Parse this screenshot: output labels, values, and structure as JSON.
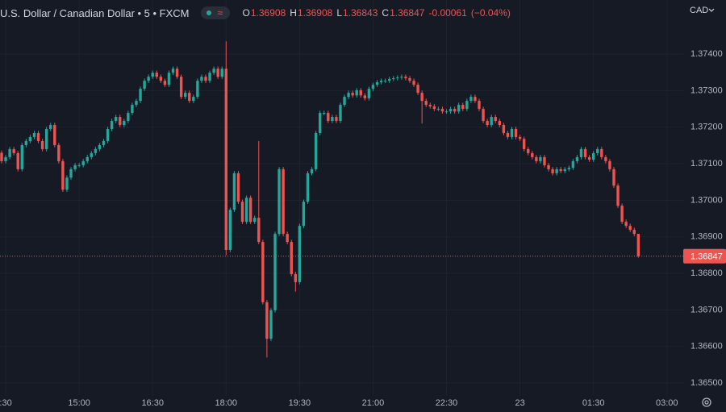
{
  "chart_data": {
    "type": "candlestick",
    "title": "U.S. Dollar / Canadian Dollar • 5 • FXCM",
    "ohlc_letters": [
      "O",
      "H",
      "L",
      "C"
    ],
    "change": -0.00061,
    "change_pct": "(−0.04%)",
    "currency": "CAD",
    "up_color": "#26a69a",
    "down_color": "#ef5350",
    "grid": true,
    "x": [
      "13:25",
      "13:30",
      "13:35",
      "13:40",
      "13:45",
      "13:50",
      "13:55",
      "14:00",
      "14:05",
      "14:10",
      "14:15",
      "14:20",
      "14:25",
      "14:30",
      "14:35",
      "14:40",
      "14:45",
      "14:50",
      "14:55",
      "15:00",
      "15:05",
      "15:10",
      "15:15",
      "15:20",
      "15:25",
      "15:30",
      "15:35",
      "15:40",
      "15:45",
      "15:50",
      "15:55",
      "16:00",
      "16:05",
      "16:10",
      "16:15",
      "16:20",
      "16:25",
      "16:30",
      "16:35",
      "16:40",
      "16:45",
      "16:50",
      "16:55",
      "17:00",
      "17:05",
      "17:10",
      "17:15",
      "17:20",
      "17:25",
      "17:30",
      "17:35",
      "17:40",
      "17:45",
      "17:50",
      "17:55",
      "18:00",
      "18:05",
      "18:10",
      "18:15",
      "18:20",
      "18:25",
      "18:30",
      "18:35",
      "18:40",
      "18:45",
      "18:50",
      "18:55",
      "19:00",
      "19:05",
      "19:10",
      "19:15",
      "19:20",
      "19:25",
      "19:30",
      "19:35",
      "19:40",
      "19:45",
      "19:50",
      "19:55",
      "20:00",
      "20:05",
      "20:10",
      "20:15",
      "20:20",
      "20:25",
      "20:30",
      "20:35",
      "20:40",
      "20:45",
      "20:50",
      "20:55",
      "21:00",
      "21:05",
      "21:10",
      "21:15",
      "21:20",
      "21:25",
      "21:30",
      "21:35",
      "21:40",
      "21:45",
      "21:50",
      "21:55",
      "22:00",
      "22:05",
      "22:10",
      "22:15",
      "22:20",
      "22:25",
      "22:30",
      "22:35",
      "22:40",
      "22:45",
      "22:50",
      "22:55",
      "23:00",
      "23:05",
      "23:10",
      "23:15",
      "23:20",
      "23:25",
      "23:30",
      "23:35",
      "23:40",
      "23:45",
      "23:50",
      "23:55",
      "00:00",
      "00:05",
      "00:10",
      "00:15",
      "00:20",
      "00:25",
      "00:30",
      "00:35",
      "00:40",
      "00:45",
      "00:50",
      "00:55",
      "01:00",
      "01:05",
      "01:10",
      "01:15",
      "01:20",
      "01:25",
      "01:30",
      "01:35",
      "01:40",
      "01:45",
      "01:50",
      "01:55",
      "02:00",
      "02:05",
      "02:10",
      "02:15",
      "02:20",
      "02:25"
    ],
    "open": [
      1.3713,
      1.37107,
      1.37118,
      1.3714,
      1.37129,
      1.37085,
      1.37151,
      1.37162,
      1.37173,
      1.37184,
      1.37162,
      1.3714,
      1.37195,
      1.37206,
      1.37151,
      1.37107,
      1.37029,
      1.37062,
      1.37085,
      1.37096,
      1.37096,
      1.37107,
      1.37118,
      1.37129,
      1.3714,
      1.37151,
      1.37162,
      1.37195,
      1.37217,
      1.37228,
      1.37206,
      1.37217,
      1.37239,
      1.37261,
      1.37272,
      1.37305,
      1.37327,
      1.37338,
      1.37349,
      1.37338,
      1.37327,
      1.37316,
      1.37349,
      1.3736,
      1.37338,
      1.37283,
      1.37294,
      1.37272,
      1.37283,
      1.37327,
      1.37338,
      1.37327,
      1.37349,
      1.3736,
      1.37338,
      1.3736,
      1.36864,
      1.36974,
      1.37074,
      1.36996,
      1.36941,
      1.37007,
      1.36941,
      1.36952,
      1.36886,
      1.36721,
      1.36621,
      1.36699,
      1.36908,
      1.37085,
      1.36908,
      1.36886,
      1.36798,
      1.36776,
      1.3693,
      1.36996,
      1.37074,
      1.37085,
      1.37184,
      1.37239,
      1.37239,
      1.37217,
      1.37228,
      1.37217,
      1.37261,
      1.37283,
      1.37294,
      1.37287,
      1.37301,
      1.37287,
      1.37279,
      1.37305,
      1.37316,
      1.37323,
      1.37327,
      1.37327,
      1.37332,
      1.37334,
      1.37336,
      1.37338,
      1.37334,
      1.37327,
      1.37316,
      1.37294,
      1.37272,
      1.37261,
      1.37257,
      1.3725,
      1.3725,
      1.37243,
      1.37243,
      1.3725,
      1.37243,
      1.37261,
      1.3725,
      1.37272,
      1.37283,
      1.37272,
      1.3725,
      1.37217,
      1.37206,
      1.37228,
      1.37217,
      1.37206,
      1.37184,
      1.37173,
      1.37195,
      1.37173,
      1.37168,
      1.3714,
      1.37129,
      1.37118,
      1.37107,
      1.37118,
      1.37096,
      1.37085,
      1.37074,
      1.37085,
      1.3708,
      1.37085,
      1.37089,
      1.37107,
      1.37118,
      1.3714,
      1.37118,
      1.37111,
      1.37129,
      1.3714,
      1.37118,
      1.37107,
      1.37085,
      1.3704,
      1.36985,
      1.36941,
      1.3693,
      1.36919,
      1.36908
    ],
    "high": [
      1.37136,
      1.37124,
      1.37146,
      1.37146,
      1.37135,
      1.37157,
      1.37168,
      1.37179,
      1.3719,
      1.3719,
      1.37168,
      1.37201,
      1.37212,
      1.37212,
      1.37157,
      1.37113,
      1.37068,
      1.37091,
      1.37102,
      1.37102,
      1.37113,
      1.37124,
      1.37135,
      1.37146,
      1.37157,
      1.37168,
      1.37201,
      1.37223,
      1.37234,
      1.37234,
      1.37223,
      1.37245,
      1.37267,
      1.37278,
      1.37311,
      1.37333,
      1.37344,
      1.37355,
      1.37355,
      1.37344,
      1.37333,
      1.37355,
      1.37366,
      1.37366,
      1.37344,
      1.373,
      1.373,
      1.37289,
      1.37333,
      1.37344,
      1.37344,
      1.37355,
      1.37366,
      1.37366,
      1.37366,
      1.37435,
      1.3698,
      1.3708,
      1.3708,
      1.37002,
      1.37013,
      1.37013,
      1.36958,
      1.37162,
      1.36892,
      1.36727,
      1.36705,
      1.36914,
      1.37091,
      1.37091,
      1.36914,
      1.36892,
      1.36804,
      1.36936,
      1.37002,
      1.3708,
      1.37091,
      1.3719,
      1.37245,
      1.37245,
      1.37245,
      1.37234,
      1.37234,
      1.37267,
      1.37289,
      1.373,
      1.373,
      1.37307,
      1.37307,
      1.37293,
      1.37311,
      1.37322,
      1.37329,
      1.37333,
      1.37333,
      1.37338,
      1.3734,
      1.37342,
      1.37344,
      1.37344,
      1.3734,
      1.37333,
      1.37322,
      1.373,
      1.37278,
      1.37267,
      1.37263,
      1.37256,
      1.37256,
      1.37249,
      1.37256,
      1.37256,
      1.37267,
      1.37267,
      1.37278,
      1.37289,
      1.37289,
      1.37278,
      1.37256,
      1.37223,
      1.37234,
      1.37234,
      1.37223,
      1.37212,
      1.3719,
      1.37201,
      1.37201,
      1.37179,
      1.37174,
      1.37146,
      1.37135,
      1.37124,
      1.37124,
      1.37124,
      1.37102,
      1.37091,
      1.37091,
      1.37091,
      1.37091,
      1.37095,
      1.37113,
      1.37124,
      1.37146,
      1.37146,
      1.37124,
      1.37135,
      1.37146,
      1.37146,
      1.37124,
      1.37113,
      1.37091,
      1.37046,
      1.36991,
      1.36947,
      1.36936,
      1.36925,
      1.36908
    ],
    "low": [
      1.37101,
      1.37101,
      1.37112,
      1.37123,
      1.37079,
      1.37079,
      1.37145,
      1.37156,
      1.37167,
      1.37156,
      1.37134,
      1.37134,
      1.37189,
      1.37145,
      1.37101,
      1.37023,
      1.37023,
      1.37056,
      1.37079,
      1.3709,
      1.3709,
      1.37101,
      1.37112,
      1.37123,
      1.37134,
      1.37145,
      1.37156,
      1.37189,
      1.37211,
      1.372,
      1.372,
      1.37211,
      1.37233,
      1.37255,
      1.37266,
      1.37299,
      1.37321,
      1.37332,
      1.37332,
      1.37321,
      1.3731,
      1.3731,
      1.37343,
      1.37332,
      1.37277,
      1.37277,
      1.37266,
      1.37266,
      1.37277,
      1.37321,
      1.37321,
      1.37321,
      1.37343,
      1.37332,
      1.37332,
      1.3685,
      1.36858,
      1.36968,
      1.3699,
      1.36935,
      1.36935,
      1.36935,
      1.36935,
      1.3688,
      1.36715,
      1.3657,
      1.36615,
      1.36693,
      1.36902,
      1.36902,
      1.3688,
      1.36792,
      1.3675,
      1.3677,
      1.36924,
      1.3699,
      1.37068,
      1.37079,
      1.37178,
      1.37233,
      1.37211,
      1.37211,
      1.37211,
      1.37211,
      1.37255,
      1.37277,
      1.37281,
      1.37281,
      1.37281,
      1.37273,
      1.37273,
      1.37299,
      1.3731,
      1.37317,
      1.37321,
      1.37321,
      1.37326,
      1.37328,
      1.3733,
      1.37328,
      1.37321,
      1.3731,
      1.37288,
      1.3721,
      1.37255,
      1.37251,
      1.37244,
      1.37244,
      1.37237,
      1.37237,
      1.37237,
      1.37237,
      1.37237,
      1.37244,
      1.37244,
      1.37266,
      1.37266,
      1.37244,
      1.37211,
      1.372,
      1.372,
      1.37211,
      1.372,
      1.37178,
      1.37167,
      1.37167,
      1.37167,
      1.37162,
      1.37134,
      1.37123,
      1.37112,
      1.37101,
      1.37101,
      1.3709,
      1.37079,
      1.37068,
      1.37068,
      1.37074,
      1.37074,
      1.37079,
      1.37083,
      1.37101,
      1.37112,
      1.37112,
      1.37105,
      1.37105,
      1.37123,
      1.37112,
      1.37101,
      1.37079,
      1.37034,
      1.36979,
      1.36935,
      1.36924,
      1.36913,
      1.36902,
      1.36843
    ],
    "close": [
      1.37107,
      1.37118,
      1.3714,
      1.37129,
      1.37085,
      1.37151,
      1.37162,
      1.37173,
      1.37184,
      1.37162,
      1.3714,
      1.37195,
      1.37206,
      1.37151,
      1.37107,
      1.37029,
      1.37062,
      1.37085,
      1.37096,
      1.37096,
      1.37107,
      1.37118,
      1.37129,
      1.3714,
      1.37151,
      1.37162,
      1.37195,
      1.37217,
      1.37228,
      1.37206,
      1.37217,
      1.37239,
      1.37261,
      1.37272,
      1.37305,
      1.37327,
      1.37338,
      1.37349,
      1.37338,
      1.37327,
      1.37316,
      1.37349,
      1.3736,
      1.37338,
      1.37283,
      1.37294,
      1.37272,
      1.37283,
      1.37327,
      1.37338,
      1.37327,
      1.37349,
      1.3736,
      1.37338,
      1.3736,
      1.36864,
      1.36974,
      1.37074,
      1.36996,
      1.36941,
      1.37007,
      1.36941,
      1.36952,
      1.36886,
      1.36721,
      1.36621,
      1.36699,
      1.36908,
      1.37085,
      1.36908,
      1.36886,
      1.36798,
      1.36776,
      1.3693,
      1.36996,
      1.37074,
      1.37085,
      1.37184,
      1.37239,
      1.37239,
      1.37217,
      1.37228,
      1.37217,
      1.37261,
      1.37283,
      1.37294,
      1.37287,
      1.37301,
      1.37287,
      1.37279,
      1.37305,
      1.37316,
      1.37323,
      1.37327,
      1.37327,
      1.37332,
      1.37334,
      1.37336,
      1.37338,
      1.37334,
      1.37327,
      1.37316,
      1.37294,
      1.37272,
      1.37261,
      1.37257,
      1.3725,
      1.3725,
      1.37243,
      1.37243,
      1.3725,
      1.37243,
      1.37261,
      1.3725,
      1.37272,
      1.37283,
      1.37272,
      1.3725,
      1.37217,
      1.37206,
      1.37228,
      1.37217,
      1.37206,
      1.37184,
      1.37173,
      1.37195,
      1.37173,
      1.37168,
      1.3714,
      1.37129,
      1.37118,
      1.37107,
      1.37118,
      1.37096,
      1.37085,
      1.37074,
      1.37085,
      1.3708,
      1.37085,
      1.37089,
      1.37107,
      1.37118,
      1.3714,
      1.37118,
      1.37111,
      1.37129,
      1.3714,
      1.37118,
      1.37107,
      1.37085,
      1.3704,
      1.36985,
      1.36941,
      1.3693,
      1.36919,
      1.36908,
      1.36847
    ],
    "xlim": [
      "13:25",
      "03:20"
    ],
    "xticks": [
      {
        "value": "13:30",
        "label": ":30"
      },
      "15:00",
      "16:30",
      "18:00",
      "19:30",
      "21:00",
      "22:30",
      {
        "value": "00:00",
        "label": "23"
      },
      "01:30",
      "03:00"
    ],
    "ylim": [
      1.36467,
      1.37548
    ],
    "yticks": [
      {
        "value": 1.365,
        "label": "1.36500"
      },
      {
        "value": 1.366,
        "label": "1.36600"
      },
      {
        "value": 1.367,
        "label": "1.36700"
      },
      {
        "value": 1.368,
        "label": "1.36800"
      },
      {
        "value": 1.369,
        "label": "1.36900"
      },
      {
        "value": 1.37,
        "label": "1.37000"
      },
      {
        "value": 1.371,
        "label": "1.37100"
      },
      {
        "value": 1.372,
        "label": "1.37200"
      },
      {
        "value": 1.373,
        "label": "1.37300"
      },
      {
        "value": 1.374,
        "label": "1.37400"
      }
    ]
  }
}
